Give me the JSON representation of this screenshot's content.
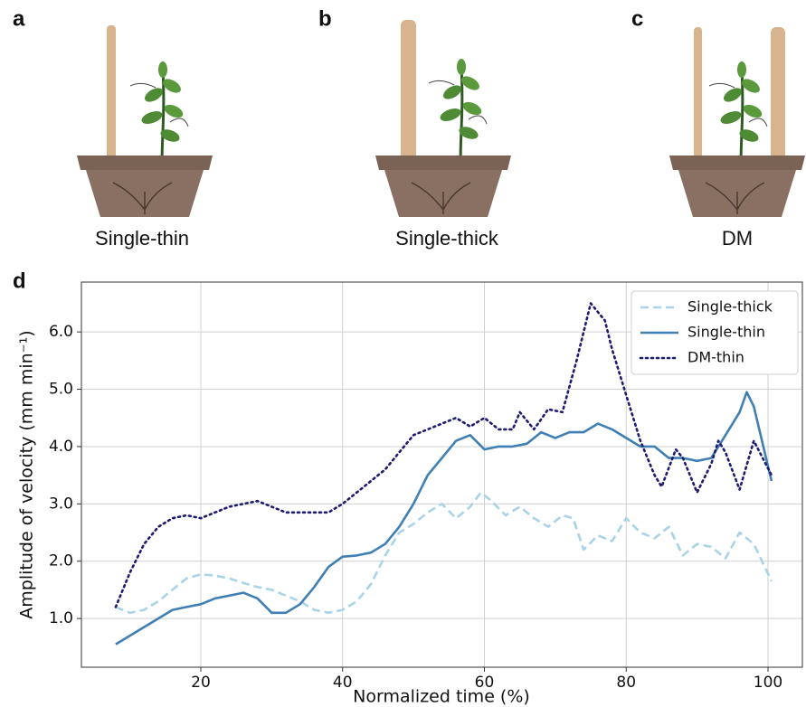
{
  "panels": [
    {
      "label": "a",
      "caption": "Single-thin"
    },
    {
      "label": "b",
      "caption": "Single-thick"
    },
    {
      "label": "c",
      "caption": "DM"
    }
  ],
  "chart_data": {
    "type": "line",
    "panel_label": "d",
    "xlabel": "Normalized time (%)",
    "ylabel": "Amplitude of velocity (mm min⁻¹)",
    "xlim": [
      3.16,
      104.85
    ],
    "ylim": [
      0.15,
      6.87
    ],
    "xticks": [
      20,
      40,
      60,
      80,
      100
    ],
    "yticks": [
      {
        "value": 1,
        "label": "1.0"
      },
      {
        "value": 2,
        "label": "2.0"
      },
      {
        "value": 3,
        "label": "3.0"
      },
      {
        "value": 4,
        "label": "4.0"
      },
      {
        "value": 5,
        "label": "5.0"
      },
      {
        "value": 6,
        "label": "6.0"
      }
    ],
    "grid": true,
    "legend": "upper right",
    "series": [
      {
        "name": "Single-thick",
        "color": "#a9d3e6",
        "style": "dashed",
        "x": [
          8,
          10,
          12,
          14,
          16,
          18,
          20,
          22,
          24,
          26,
          28,
          30,
          32,
          34,
          36,
          38,
          40,
          42,
          44,
          46,
          48,
          50,
          52,
          54,
          56,
          58,
          59.5,
          61,
          63,
          65,
          67,
          69,
          71,
          72.5,
          74,
          76,
          78,
          80,
          82,
          84,
          86,
          88,
          90,
          92,
          94,
          96,
          98,
          100.5
        ],
        "values": [
          1.2,
          1.1,
          1.15,
          1.3,
          1.5,
          1.7,
          1.77,
          1.75,
          1.7,
          1.62,
          1.55,
          1.5,
          1.4,
          1.3,
          1.15,
          1.1,
          1.15,
          1.3,
          1.6,
          2.1,
          2.5,
          2.65,
          2.85,
          3.0,
          2.75,
          2.95,
          3.2,
          3.05,
          2.8,
          2.95,
          2.75,
          2.6,
          2.8,
          2.75,
          2.2,
          2.45,
          2.35,
          2.75,
          2.5,
          2.4,
          2.6,
          2.1,
          2.3,
          2.25,
          2.05,
          2.5,
          2.3,
          1.65
        ]
      },
      {
        "name": "Single-thin",
        "color": "#3f7fb4",
        "style": "solid",
        "x": [
          8,
          10,
          12,
          14,
          16,
          18,
          20,
          22,
          24,
          26,
          28,
          30,
          32,
          34,
          36,
          38,
          40,
          42,
          44,
          46,
          48,
          50,
          52,
          54,
          56,
          58,
          60,
          62,
          64,
          66,
          68,
          70,
          72,
          74,
          76,
          78,
          80,
          82,
          84,
          86,
          88,
          90,
          92,
          94,
          96,
          97,
          98,
          100.5
        ],
        "values": [
          0.55,
          0.7,
          0.85,
          1.0,
          1.15,
          1.2,
          1.25,
          1.35,
          1.4,
          1.45,
          1.35,
          1.1,
          1.1,
          1.25,
          1.55,
          1.9,
          2.08,
          2.1,
          2.15,
          2.3,
          2.6,
          3.0,
          3.5,
          3.8,
          4.1,
          4.2,
          3.95,
          4.0,
          4.0,
          4.05,
          4.25,
          4.15,
          4.25,
          4.25,
          4.4,
          4.3,
          4.15,
          4.0,
          4.0,
          3.8,
          3.8,
          3.75,
          3.8,
          4.2,
          4.6,
          4.95,
          4.7,
          3.4
        ]
      },
      {
        "name": "DM-thin",
        "color": "#1f1b6e",
        "style": "dotted",
        "x": [
          8,
          10,
          12,
          14,
          16,
          18,
          20,
          22,
          24,
          26,
          28,
          30,
          32,
          34,
          36,
          38,
          40,
          42,
          44,
          46,
          48,
          50,
          52,
          54,
          56,
          58,
          60,
          62,
          64,
          65,
          67,
          69,
          71,
          73,
          75,
          77,
          78,
          80,
          82,
          84,
          85,
          87,
          88,
          90,
          92,
          93,
          94,
          96,
          98,
          100.5
        ],
        "values": [
          1.2,
          1.8,
          2.3,
          2.6,
          2.75,
          2.8,
          2.75,
          2.85,
          2.95,
          3.0,
          3.05,
          2.95,
          2.85,
          2.85,
          2.85,
          2.85,
          3.0,
          3.2,
          3.4,
          3.6,
          3.9,
          4.2,
          4.3,
          4.4,
          4.5,
          4.35,
          4.5,
          4.3,
          4.3,
          4.6,
          4.3,
          4.65,
          4.6,
          5.5,
          6.5,
          6.2,
          5.7,
          4.9,
          4.1,
          3.5,
          3.3,
          3.95,
          3.8,
          3.2,
          3.7,
          4.1,
          3.9,
          3.25,
          4.1,
          3.5
        ]
      }
    ]
  }
}
